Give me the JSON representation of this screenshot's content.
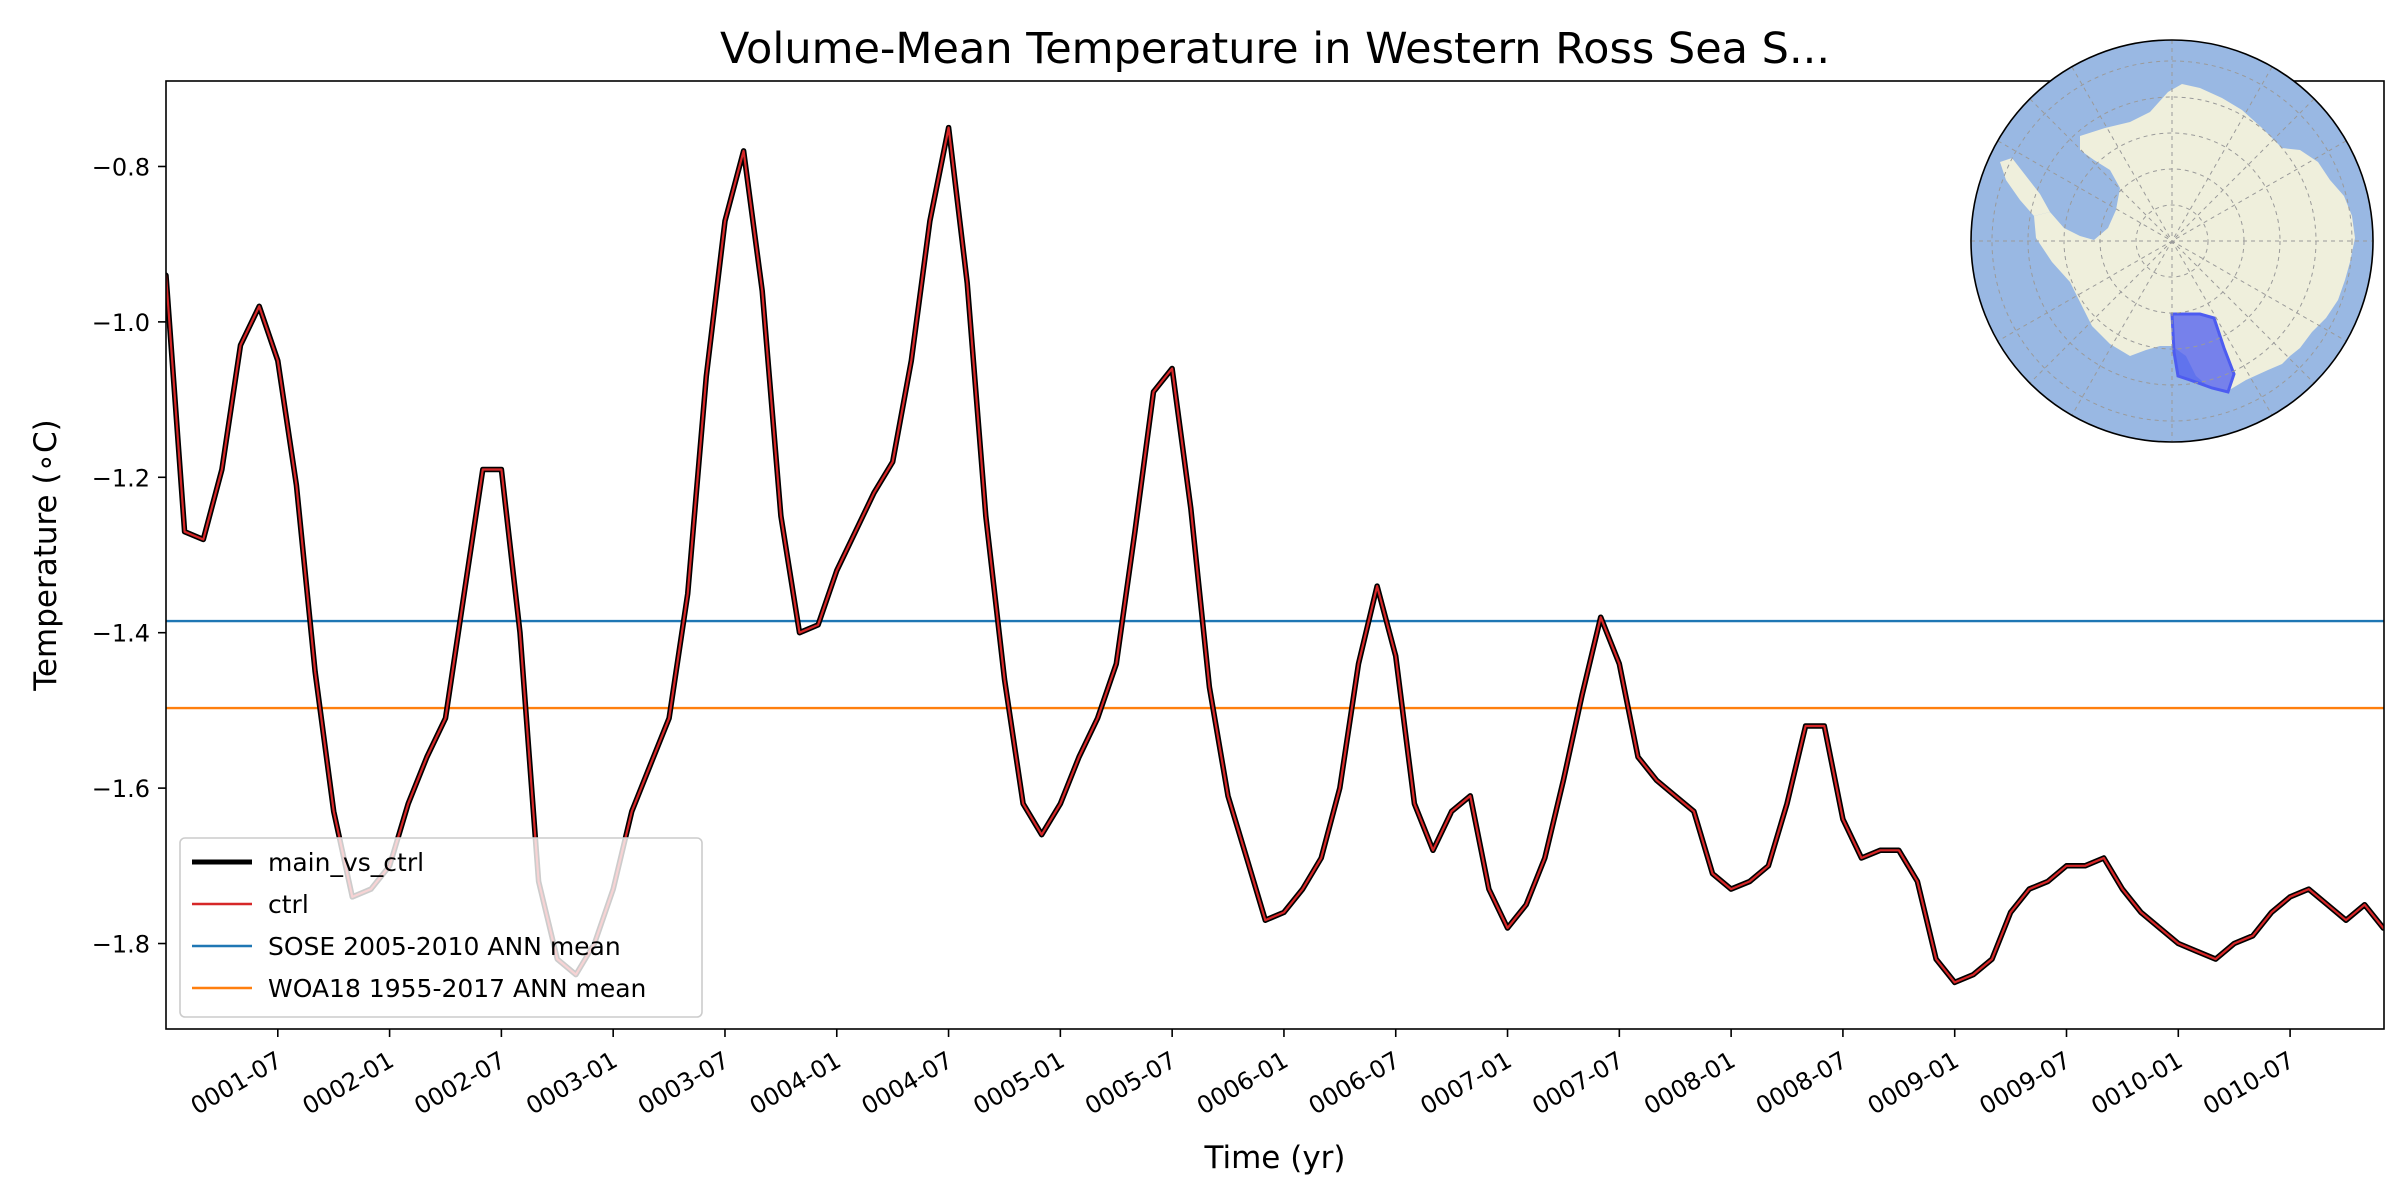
{
  "chart_data": {
    "type": "line",
    "title": "Volume-Mean Temperature in Western Ross Sea S...",
    "xlabel": "Time (yr)",
    "ylabel": "Temperature (∘C)",
    "xlim": [
      1.0,
      10.92
    ],
    "ylim": [
      -1.91,
      -0.69
    ],
    "grid": false,
    "legend_position": "lower-left",
    "x_ticks": [
      1.5,
      2.0,
      2.5,
      3.0,
      3.5,
      4.0,
      4.5,
      5.0,
      5.5,
      6.0,
      6.5,
      7.0,
      7.5,
      8.0,
      8.5,
      9.0,
      9.5,
      10.0,
      10.5
    ],
    "x_tick_labels": [
      "0001-07",
      "0002-01",
      "0002-07",
      "0003-01",
      "0003-07",
      "0004-01",
      "0004-07",
      "0005-01",
      "0005-07",
      "0006-01",
      "0006-07",
      "0007-01",
      "0007-07",
      "0008-01",
      "0008-07",
      "0009-01",
      "0009-07",
      "0010-01",
      "0010-07"
    ],
    "y_ticks": [
      -1.8,
      -1.6,
      -1.4,
      -1.2,
      -1.0,
      -0.8
    ],
    "y_tick_labels": [
      "−1.8",
      "−1.6",
      "−1.4",
      "−1.2",
      "−1.0",
      "−0.8"
    ],
    "x": [
      1.0,
      1.08333,
      1.16667,
      1.25,
      1.33333,
      1.41667,
      1.5,
      1.58333,
      1.66667,
      1.75,
      1.83333,
      1.91667,
      2.0,
      2.08333,
      2.16667,
      2.25,
      2.33333,
      2.41667,
      2.5,
      2.58333,
      2.66667,
      2.75,
      2.83333,
      2.91667,
      3.0,
      3.08333,
      3.16667,
      3.25,
      3.33333,
      3.41667,
      3.5,
      3.58333,
      3.66667,
      3.75,
      3.83333,
      3.91667,
      4.0,
      4.08333,
      4.16667,
      4.25,
      4.33333,
      4.41667,
      4.5,
      4.58333,
      4.66667,
      4.75,
      4.83333,
      4.91667,
      5.0,
      5.08333,
      5.16667,
      5.25,
      5.33333,
      5.41667,
      5.5,
      5.58333,
      5.66667,
      5.75,
      5.83333,
      5.91667,
      6.0,
      6.08333,
      6.16667,
      6.25,
      6.33333,
      6.41667,
      6.5,
      6.58333,
      6.66667,
      6.75,
      6.83333,
      6.91667,
      7.0,
      7.08333,
      7.16667,
      7.25,
      7.33333,
      7.41667,
      7.5,
      7.58333,
      7.66667,
      7.75,
      7.83333,
      7.91667,
      8.0,
      8.08333,
      8.16667,
      8.25,
      8.33333,
      8.41667,
      8.5,
      8.58333,
      8.66667,
      8.75,
      8.83333,
      8.91667,
      9.0,
      9.08333,
      9.16667,
      9.25,
      9.33333,
      9.41667,
      9.5,
      9.58333,
      9.66667,
      9.75,
      9.83333,
      9.91667,
      10.0,
      10.08333,
      10.16667,
      10.25,
      10.33333,
      10.41667,
      10.5,
      10.58333,
      10.66667,
      10.75,
      10.83333,
      10.91667
    ],
    "series": [
      {
        "name": "main_vs_ctrl",
        "color": "#000000",
        "style": "thick",
        "values": [
          -0.94,
          -1.27,
          -1.28,
          -1.19,
          -1.03,
          -0.98,
          -1.05,
          -1.21,
          -1.45,
          -1.63,
          -1.74,
          -1.73,
          -1.7,
          -1.62,
          -1.56,
          -1.51,
          -1.35,
          -1.19,
          -1.19,
          -1.4,
          -1.72,
          -1.82,
          -1.84,
          -1.8,
          -1.73,
          -1.63,
          -1.57,
          -1.51,
          -1.35,
          -1.07,
          -0.87,
          -0.78,
          -0.96,
          -1.25,
          -1.4,
          -1.39,
          -1.32,
          -1.27,
          -1.22,
          -1.18,
          -1.05,
          -0.87,
          -0.75,
          -0.95,
          -1.25,
          -1.46,
          -1.62,
          -1.66,
          -1.62,
          -1.56,
          -1.51,
          -1.44,
          -1.27,
          -1.09,
          -1.06,
          -1.24,
          -1.47,
          -1.61,
          -1.69,
          -1.77,
          -1.76,
          -1.73,
          -1.69,
          -1.6,
          -1.44,
          -1.34,
          -1.43,
          -1.62,
          -1.68,
          -1.63,
          -1.61,
          -1.73,
          -1.78,
          -1.75,
          -1.69,
          -1.59,
          -1.48,
          -1.38,
          -1.44,
          -1.56,
          -1.59,
          -1.61,
          -1.63,
          -1.71,
          -1.73,
          -1.72,
          -1.7,
          -1.62,
          -1.52,
          -1.52,
          -1.64,
          -1.69,
          -1.68,
          -1.68,
          -1.72,
          -1.82,
          -1.85,
          -1.84,
          -1.82,
          -1.76,
          -1.73,
          -1.72,
          -1.7,
          -1.7,
          -1.69,
          -1.73,
          -1.76,
          -1.78,
          -1.8,
          -1.81,
          -1.82,
          -1.8,
          -1.79,
          -1.76,
          -1.74,
          -1.73,
          -1.75,
          -1.77,
          -1.75,
          -1.78
        ]
      },
      {
        "name": "ctrl",
        "color": "#d62728",
        "style": "thin",
        "values": [
          -0.94,
          -1.27,
          -1.28,
          -1.19,
          -1.03,
          -0.98,
          -1.05,
          -1.21,
          -1.45,
          -1.63,
          -1.74,
          -1.73,
          -1.7,
          -1.62,
          -1.56,
          -1.51,
          -1.35,
          -1.19,
          -1.19,
          -1.4,
          -1.72,
          -1.82,
          -1.84,
          -1.8,
          -1.73,
          -1.63,
          -1.57,
          -1.51,
          -1.35,
          -1.07,
          -0.87,
          -0.78,
          -0.96,
          -1.25,
          -1.4,
          -1.39,
          -1.32,
          -1.27,
          -1.22,
          -1.18,
          -1.05,
          -0.87,
          -0.75,
          -0.95,
          -1.25,
          -1.46,
          -1.62,
          -1.66,
          -1.62,
          -1.56,
          -1.51,
          -1.44,
          -1.27,
          -1.09,
          -1.06,
          -1.24,
          -1.47,
          -1.61,
          -1.69,
          -1.77,
          -1.76,
          -1.73,
          -1.69,
          -1.6,
          -1.44,
          -1.34,
          -1.43,
          -1.62,
          -1.68,
          -1.63,
          -1.61,
          -1.73,
          -1.78,
          -1.75,
          -1.69,
          -1.59,
          -1.48,
          -1.38,
          -1.44,
          -1.56,
          -1.59,
          -1.61,
          -1.63,
          -1.71,
          -1.73,
          -1.72,
          -1.7,
          -1.62,
          -1.52,
          -1.52,
          -1.64,
          -1.69,
          -1.68,
          -1.68,
          -1.72,
          -1.82,
          -1.85,
          -1.84,
          -1.82,
          -1.76,
          -1.73,
          -1.72,
          -1.7,
          -1.7,
          -1.69,
          -1.73,
          -1.76,
          -1.78,
          -1.8,
          -1.81,
          -1.82,
          -1.8,
          -1.79,
          -1.76,
          -1.74,
          -1.73,
          -1.75,
          -1.77,
          -1.75,
          -1.78
        ]
      }
    ],
    "hlines": [
      {
        "name": "SOSE 2005-2010 ANN mean",
        "value": -1.385,
        "color": "#1f77b4"
      },
      {
        "name": "WOA18 1955-2017 ANN mean",
        "value": -1.497,
        "color": "#ff7f0e"
      }
    ],
    "legend": [
      {
        "label": "main_vs_ctrl",
        "color": "#000000",
        "style": "thick"
      },
      {
        "label": "ctrl",
        "color": "#d62728",
        "style": "thin"
      },
      {
        "label": "SOSE 2005-2010 ANN mean",
        "color": "#1f77b4",
        "style": "thin"
      },
      {
        "label": "WOA18 1955-2017 ANN mean",
        "color": "#ff7f0e",
        "style": "thin"
      }
    ],
    "inset_map": {
      "type": "south-polar-map",
      "ocean_color": "#99b8e3",
      "land_color": "#efefdc",
      "region_color": "#4d5cf0",
      "region_name": "Western Ross Sea"
    }
  }
}
